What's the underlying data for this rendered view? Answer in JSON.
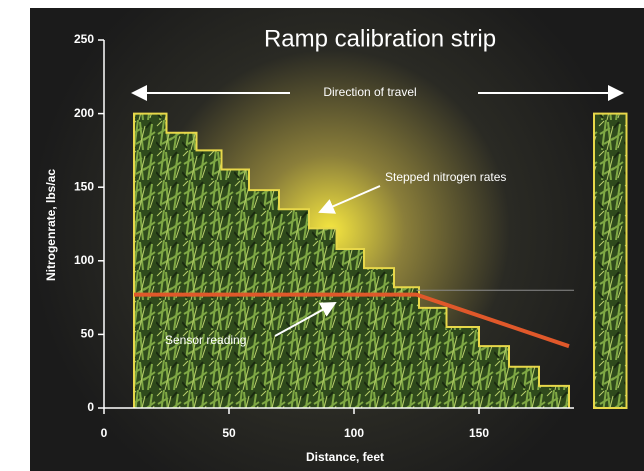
{
  "chart_data": {
    "type": "step",
    "title": "Ramp calibration strip",
    "x_label": "Distance, feet",
    "y_label": "Nitrogenrate, lbs/ac",
    "xlim": [
      0,
      210
    ],
    "ylim": [
      0,
      250
    ],
    "xticks": [
      0,
      50,
      100,
      150
    ],
    "yticks": [
      0,
      50,
      100,
      150,
      200,
      250
    ],
    "steps": {
      "edges": [
        12,
        25,
        37,
        47,
        58,
        70,
        82,
        93,
        104,
        116,
        126,
        137,
        150,
        162,
        174,
        186
      ],
      "values": [
        200,
        187,
        175,
        162,
        148,
        135,
        122,
        108,
        95,
        82,
        68,
        55,
        42,
        28,
        15
      ],
      "color": "#e8d84a"
    },
    "strip": {
      "x": [
        196,
        209
      ],
      "value": 200
    },
    "sensor": {
      "x": [
        12,
        125,
        186
      ],
      "values": [
        77,
        77,
        42
      ],
      "color": "#e0582a"
    },
    "reference": {
      "x": [
        125,
        188
      ],
      "values": [
        80,
        80
      ],
      "color": "#8a8a8a"
    },
    "annotations": {
      "direction": "Direction of travel",
      "steps": "Stepped nitrogen rates",
      "sensor": "Sensor reading"
    }
  }
}
